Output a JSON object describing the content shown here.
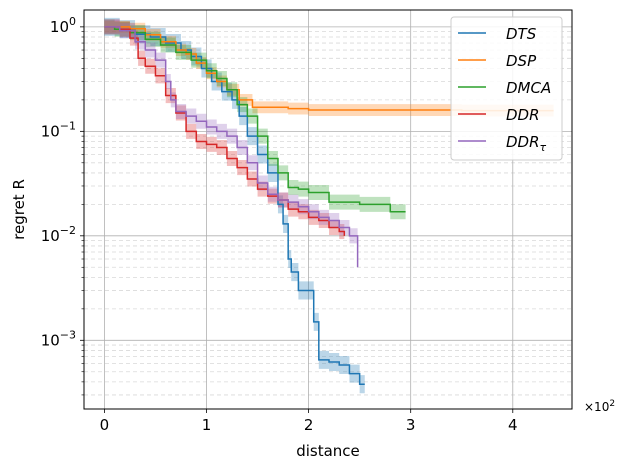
{
  "chart_data": {
    "type": "line",
    "xlabel": "distance",
    "ylabel": "regret R",
    "x_multiplier": "×10²",
    "x_multiplier_base": "×10",
    "x_multiplier_exp": "2",
    "xlim": [
      -0.2,
      4.58
    ],
    "ylim": [
      0.00022,
      1.45
    ],
    "yscale": "log",
    "grid": true,
    "legend_position": "top-right",
    "x_ticks": [
      {
        "value": 0,
        "label": "0"
      },
      {
        "value": 1,
        "label": "1"
      },
      {
        "value": 2,
        "label": "2"
      },
      {
        "value": 3,
        "label": "3"
      },
      {
        "value": 4,
        "label": "4"
      }
    ],
    "y_ticks": [
      {
        "value": 1,
        "base": "10",
        "exp": "0"
      },
      {
        "value": 0.1,
        "base": "10",
        "exp": "−1"
      },
      {
        "value": 0.01,
        "base": "10",
        "exp": "−2"
      },
      {
        "value": 0.001,
        "base": "10",
        "exp": "−3"
      }
    ],
    "series": [
      {
        "name": "DTS",
        "name_base": "DTS",
        "name_sub": "",
        "color": "#1f77b4",
        "x": [
          0,
          0.15,
          0.3,
          0.45,
          0.6,
          0.75,
          0.85,
          0.95,
          1.05,
          1.15,
          1.25,
          1.32,
          1.4,
          1.5,
          1.6,
          1.7,
          1.75,
          1.8,
          1.83,
          1.9,
          2.0,
          2.05,
          2.1,
          2.2,
          2.3,
          2.4,
          2.5,
          2.55
        ],
        "y": [
          1.0,
          0.95,
          0.85,
          0.8,
          0.7,
          0.6,
          0.52,
          0.4,
          0.3,
          0.24,
          0.2,
          0.14,
          0.09,
          0.06,
          0.04,
          0.02,
          0.013,
          0.006,
          0.0045,
          0.003,
          0.003,
          0.0015,
          0.00065,
          0.00062,
          0.00058,
          0.00048,
          0.00038,
          0.00038
        ],
        "band": 0.22
      },
      {
        "name": "DSP",
        "name_base": "DSP",
        "name_sub": "",
        "color": "#ff7f0e",
        "x": [
          0,
          0.1,
          0.25,
          0.4,
          0.55,
          0.7,
          0.8,
          0.9,
          1.0,
          1.1,
          1.2,
          1.32,
          1.45,
          1.6,
          1.8,
          2.0,
          2.5,
          3.0,
          3.5,
          4.0,
          4.4
        ],
        "y": [
          1.0,
          1.0,
          0.96,
          0.84,
          0.72,
          0.6,
          0.55,
          0.45,
          0.36,
          0.3,
          0.25,
          0.2,
          0.17,
          0.17,
          0.165,
          0.16,
          0.16,
          0.16,
          0.158,
          0.158,
          0.158
        ],
        "band": 0.14
      },
      {
        "name": "DMCA",
        "name_base": "DMCA",
        "name_sub": "",
        "color": "#2ca02c",
        "x": [
          0,
          0.1,
          0.25,
          0.4,
          0.55,
          0.7,
          0.85,
          1.0,
          1.1,
          1.2,
          1.3,
          1.4,
          1.5,
          1.6,
          1.7,
          1.8,
          1.9,
          2.0,
          2.2,
          2.5,
          2.8,
          2.95
        ],
        "y": [
          1.0,
          0.95,
          0.88,
          0.76,
          0.67,
          0.57,
          0.48,
          0.38,
          0.32,
          0.25,
          0.18,
          0.14,
          0.09,
          0.055,
          0.04,
          0.029,
          0.028,
          0.026,
          0.021,
          0.02,
          0.017,
          0.017
        ],
        "band": 0.18
      },
      {
        "name": "DDR",
        "name_base": "DDR",
        "name_sub": "",
        "color": "#d62728",
        "x": [
          0,
          0.15,
          0.25,
          0.33,
          0.4,
          0.5,
          0.6,
          0.7,
          0.8,
          0.9,
          1.0,
          1.1,
          1.2,
          1.3,
          1.4,
          1.5,
          1.6,
          1.7,
          1.8,
          1.9,
          2.0,
          2.1,
          2.2,
          2.3,
          2.35
        ],
        "y": [
          1.0,
          0.95,
          0.78,
          0.5,
          0.42,
          0.34,
          0.22,
          0.15,
          0.1,
          0.08,
          0.075,
          0.07,
          0.055,
          0.045,
          0.035,
          0.028,
          0.024,
          0.022,
          0.018,
          0.017,
          0.015,
          0.014,
          0.012,
          0.011,
          0.01
        ],
        "band": 0.18
      },
      {
        "name": "DDRτ",
        "name_base": "DDR",
        "name_sub": "τ",
        "color": "#9467bd",
        "x": [
          0,
          0.15,
          0.3,
          0.4,
          0.5,
          0.6,
          0.65,
          0.7,
          0.8,
          0.9,
          1.0,
          1.1,
          1.2,
          1.3,
          1.4,
          1.5,
          1.6,
          1.7,
          1.8,
          1.9,
          2.0,
          2.1,
          2.2,
          2.3,
          2.4,
          2.48
        ],
        "y": [
          1.0,
          0.92,
          0.72,
          0.6,
          0.48,
          0.3,
          0.2,
          0.155,
          0.14,
          0.125,
          0.11,
          0.1,
          0.09,
          0.07,
          0.05,
          0.032,
          0.025,
          0.022,
          0.021,
          0.019,
          0.017,
          0.015,
          0.014,
          0.012,
          0.01,
          0.005
        ],
        "band": 0.18
      }
    ]
  }
}
